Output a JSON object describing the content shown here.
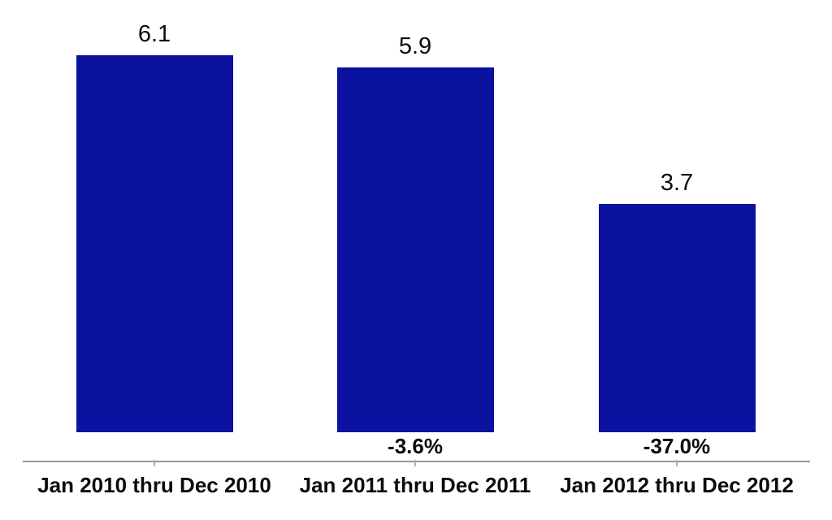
{
  "page": {
    "background": "#ffffff"
  },
  "chart_data": {
    "type": "bar",
    "title": "",
    "xlabel": "",
    "ylabel": "",
    "categories": [
      "Jan 2010 thru Dec 2010",
      "Jan 2011 thru Dec 2011",
      "Jan 2012 thru Dec 2012"
    ],
    "values": [
      6.1,
      5.9,
      3.7
    ],
    "value_labels": [
      "6.1",
      "5.9",
      "3.7"
    ],
    "change_labels": [
      "",
      "-3.6%",
      "-37.0%"
    ],
    "ylim": [
      0,
      6.5
    ],
    "grid": false,
    "legend": false,
    "y_axis_visible": false,
    "x_axis_visible": true,
    "colors": {
      "bar": "#0B12A0",
      "axis_line": "#979797",
      "tick": "#b0b0b0",
      "text": "#0c0c0c",
      "background": "#ffffff"
    }
  }
}
